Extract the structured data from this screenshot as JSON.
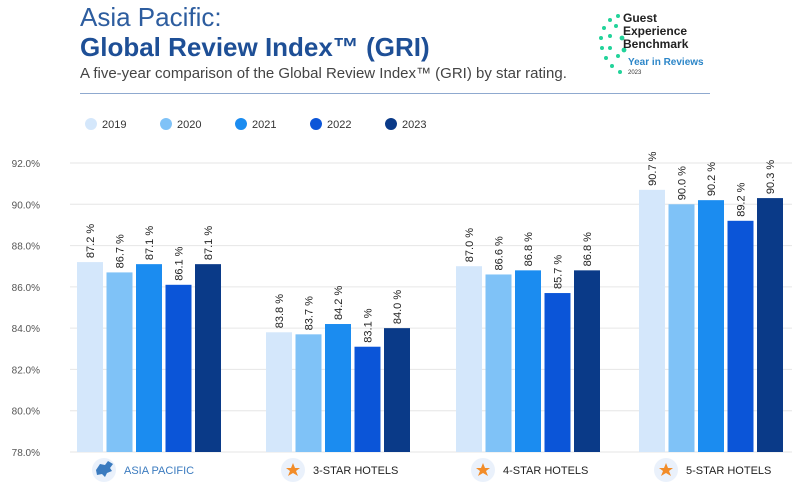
{
  "header": {
    "title_line1": "Asia Pacific:",
    "title_line2": "Global Review Index™ (GRI)",
    "subtitle": "A five-year comparison of the Global Review Index™ (GRI) by star rating."
  },
  "logo": {
    "text": "Guest Experience Benchmark",
    "line1": "Guest",
    "line2": "Experience",
    "line3": "Benchmark",
    "tagline": "Year in Reviews",
    "year": "2023"
  },
  "colors": {
    "2019": "#d4e7fb",
    "2020": "#7fc2f7",
    "2021": "#1b8cf0",
    "2022": "#0b55d8",
    "2023": "#0a3a88"
  },
  "chart_data": {
    "type": "bar",
    "title": "Global Review Index™ (GRI)",
    "categories": [
      "ASIA PACIFIC",
      "3-STAR HOTELS",
      "4-STAR HOTELS",
      "5-STAR HOTELS"
    ],
    "series": [
      {
        "name": "2019",
        "values": [
          87.2,
          83.8,
          87.0,
          90.7
        ],
        "labels": [
          "87.2 %",
          "83.8 %",
          "87.0 %",
          "90.7 %"
        ]
      },
      {
        "name": "2020",
        "values": [
          86.7,
          83.7,
          86.6,
          90.0
        ],
        "labels": [
          "86.7 %",
          "83.7 %",
          "86.6 %",
          "90.0 %"
        ]
      },
      {
        "name": "2021",
        "values": [
          87.1,
          84.2,
          86.8,
          90.2
        ],
        "labels": [
          "87.1 %",
          "84.2 %",
          "86.8 %",
          "90.2 %"
        ]
      },
      {
        "name": "2022",
        "values": [
          86.1,
          83.1,
          85.7,
          89.2
        ],
        "labels": [
          "86.1 %",
          "83.1 %",
          "85.7 %",
          "89.2 %"
        ]
      },
      {
        "name": "2023",
        "values": [
          87.1,
          84.0,
          86.8,
          90.3
        ],
        "labels": [
          "87.1 %",
          "84.0 %",
          "86.8 %",
          "90.3 %"
        ]
      }
    ],
    "yticks": [
      "78.0%",
      "80.0%",
      "82.0%",
      "84.0%",
      "86.0%",
      "88.0%",
      "90.0%",
      "92.0%"
    ],
    "ylim": [
      78,
      92
    ],
    "legend": "top-left",
    "grid": true
  }
}
